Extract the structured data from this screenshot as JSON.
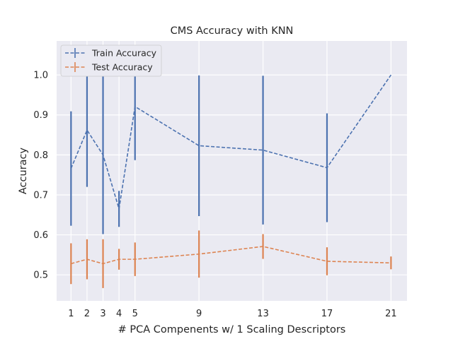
{
  "chart_data": {
    "type": "line",
    "title": "CMS Accuracy with KNN",
    "xlabel": "# PCA Compenents w/ 1 Scaling Descriptors",
    "ylabel": "Accuracy",
    "x": [
      1,
      2,
      3,
      4,
      5,
      9,
      13,
      17,
      21
    ],
    "xticks": [
      "1",
      "2",
      "3",
      "4",
      "5",
      "9",
      "13",
      "17",
      "21"
    ],
    "yticks": [
      "0.5",
      "0.6",
      "0.7",
      "0.8",
      "0.9",
      "1.0"
    ],
    "ytick_values": [
      0.5,
      0.6,
      0.7,
      0.8,
      0.9,
      1.0
    ],
    "xlim": [
      0.1,
      22.0
    ],
    "ylim": [
      0.435,
      1.085
    ],
    "grid": true,
    "legend_position": "top-left",
    "series": [
      {
        "name": "Train Accuracy",
        "color": "#4c72b0",
        "values": [
          0.766,
          0.862,
          0.8,
          0.665,
          0.921,
          0.823,
          0.812,
          0.768,
          1.0
        ],
        "errors": [
          0.143,
          0.142,
          0.198,
          0.045,
          0.134,
          0.176,
          0.186,
          0.136,
          0.0
        ]
      },
      {
        "name": "Test Accuracy",
        "color": "#dd8452",
        "values": [
          0.528,
          0.539,
          0.528,
          0.539,
          0.539,
          0.552,
          0.571,
          0.534,
          0.53
        ],
        "errors": [
          0.051,
          0.05,
          0.061,
          0.026,
          0.042,
          0.059,
          0.031,
          0.035,
          0.016
        ]
      }
    ]
  }
}
